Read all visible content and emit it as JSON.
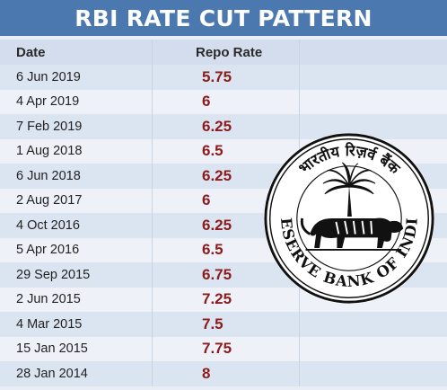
{
  "title": "RBI RATE CUT PATTERN",
  "table": {
    "headers": {
      "date": "Date",
      "rate": "Repo Rate"
    },
    "rows": [
      {
        "date": "6 Jun 2019",
        "rate": "5.75"
      },
      {
        "date": "4 Apr 2019",
        "rate": "6"
      },
      {
        "date": "7 Feb 2019",
        "rate": "6.25"
      },
      {
        "date": "1 Aug 2018",
        "rate": "6.5"
      },
      {
        "date": "6 Jun 2018",
        "rate": "6.25"
      },
      {
        "date": "2 Aug 2017",
        "rate": "6"
      },
      {
        "date": "4 Oct 2016",
        "rate": "6.25"
      },
      {
        "date": "5 Apr 2016",
        "rate": "6.5"
      },
      {
        "date": "29 Sep 2015",
        "rate": "6.75"
      },
      {
        "date": "2 Jun 2015",
        "rate": "7.25"
      },
      {
        "date": "4 Mar 2015",
        "rate": "7.5"
      },
      {
        "date": "15 Jan 2015",
        "rate": "7.75"
      },
      {
        "date": "28 Jan 2014",
        "rate": "8"
      }
    ]
  },
  "seal": {
    "text_english": "RESERVE BANK OF INDIA",
    "text_hindi": "भारतीय रिज़र्व बैंक"
  },
  "colors": {
    "title_bg": "#4b78ae",
    "rate_text": "#8c1c1c"
  }
}
